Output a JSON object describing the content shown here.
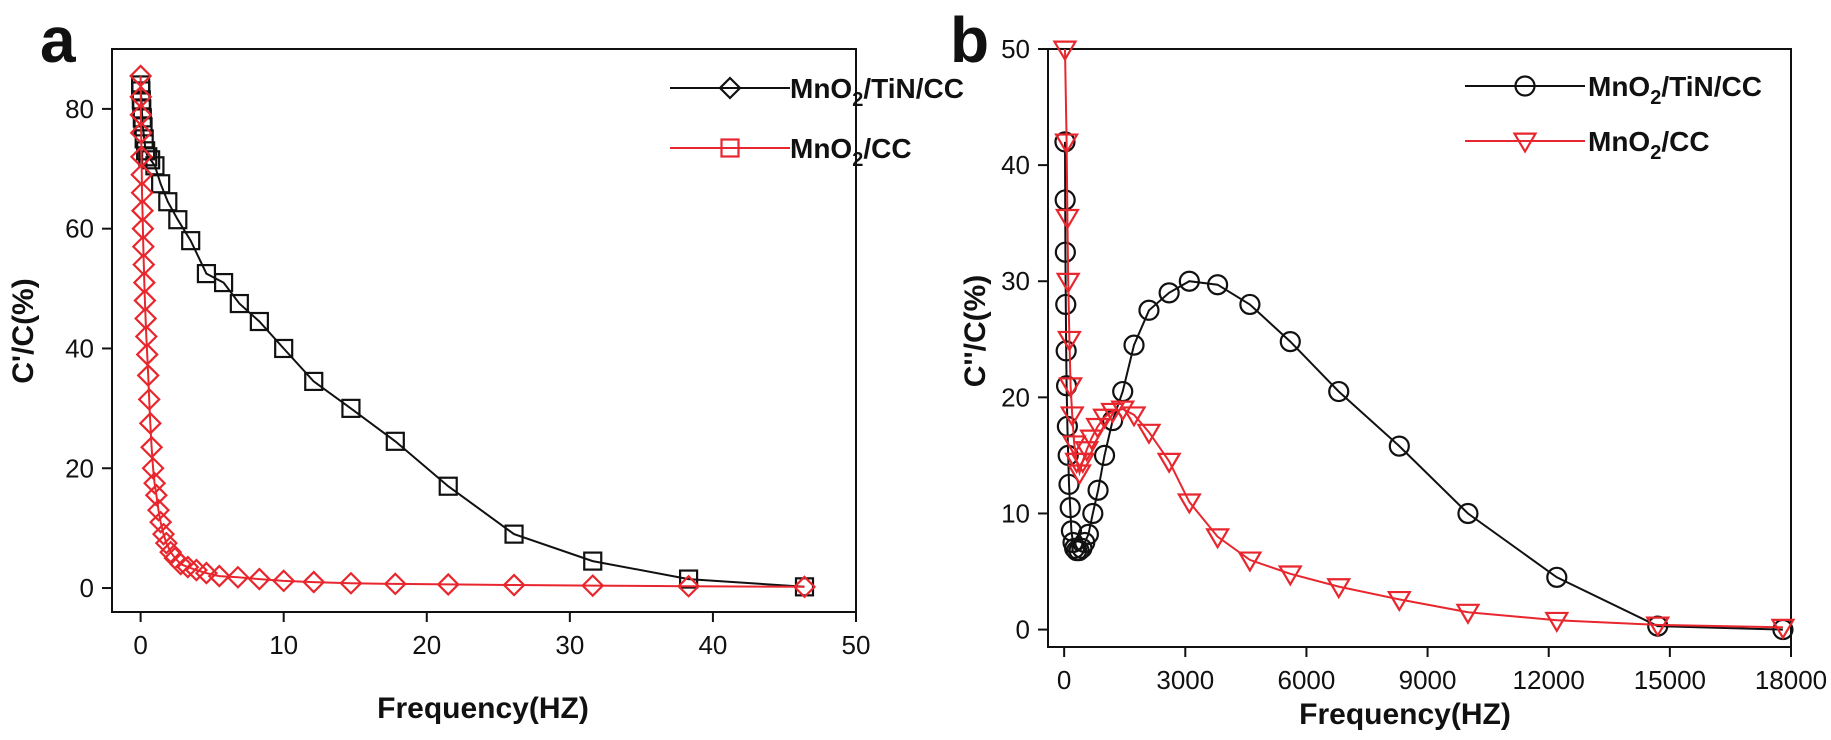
{
  "panels": [
    {
      "letter": "a",
      "xlabel": "Frequency(HZ)",
      "ylabel": "C'/C(%)"
    },
    {
      "letter": "b",
      "xlabel": "Frequency(HZ)",
      "ylabel": "C''/C(%)"
    }
  ],
  "colors": {
    "black": "#111111",
    "red": "#e8262d"
  },
  "chart_data": [
    {
      "type": "line",
      "xlabel": "Frequency(HZ)",
      "ylabel": "C'/C(%)",
      "xlim": [
        -2,
        50
      ],
      "ylim": [
        -4,
        90
      ],
      "xticks": [
        0,
        10,
        20,
        30,
        40,
        50
      ],
      "yticks": [
        0,
        20,
        40,
        60,
        80
      ],
      "legend_position": "top-right",
      "series": [
        {
          "name": "MnO2/TiN/CC",
          "name_parts": [
            "MnO",
            "2",
            "/TiN/CC"
          ],
          "color": "#111111",
          "legend_marker": "diamond",
          "marker": "square",
          "x": [
            0,
            0.02,
            0.05,
            0.08,
            0.12,
            0.17,
            0.25,
            0.35,
            0.5,
            0.7,
            1.0,
            1.4,
            1.9,
            2.6,
            3.5,
            4.6,
            5.8,
            6.9,
            8.3,
            10.0,
            12.1,
            14.7,
            17.8,
            21.5,
            26.1,
            31.6,
            38.3,
            46.4
          ],
          "y": [
            84,
            83,
            81.5,
            80,
            78.5,
            77,
            75,
            73,
            72,
            71.5,
            70.5,
            67.5,
            64.5,
            61.5,
            58,
            52.5,
            51,
            47.5,
            44.5,
            40,
            34.5,
            30,
            24.5,
            17,
            9,
            4.5,
            1.5,
            0.2
          ]
        },
        {
          "name": "MnO2/CC",
          "name_parts": [
            "MnO",
            "2",
            "/CC"
          ],
          "color": "#e8262d",
          "legend_marker": "square",
          "marker": "diamond",
          "x": [
            0,
            0.01,
            0.02,
            0.04,
            0.06,
            0.08,
            0.1,
            0.13,
            0.16,
            0.19,
            0.22,
            0.26,
            0.3,
            0.35,
            0.4,
            0.46,
            0.53,
            0.6,
            0.68,
            0.77,
            0.87,
            0.98,
            1.1,
            1.25,
            1.4,
            1.6,
            1.8,
            2.1,
            2.4,
            2.8,
            3.3,
            3.9,
            4.6,
            5.5,
            6.8,
            8.3,
            10.0,
            12.1,
            14.7,
            17.8,
            21.5,
            26.1,
            31.6,
            38.3,
            46.4
          ],
          "y": [
            85.5,
            82,
            79,
            76,
            72,
            69,
            66,
            63,
            60,
            57,
            54,
            51,
            48,
            45,
            42,
            39,
            35.5,
            31.5,
            27.5,
            23.5,
            20,
            17.5,
            15.5,
            13,
            11,
            9,
            7.5,
            6,
            5,
            4,
            3.5,
            3,
            2.5,
            2,
            1.8,
            1.5,
            1.2,
            1,
            0.8,
            0.7,
            0.6,
            0.5,
            0.4,
            0.3,
            0.2
          ]
        }
      ]
    },
    {
      "type": "line",
      "xlabel": "Frequency(HZ)",
      "ylabel": "C''/C(%)",
      "xlim": [
        -400,
        18000
      ],
      "ylim": [
        -1.5,
        50
      ],
      "xticks": [
        0,
        3000,
        6000,
        9000,
        12000,
        15000,
        18000
      ],
      "yticks": [
        0,
        10,
        20,
        30,
        40,
        50
      ],
      "legend_position": "top-right",
      "series": [
        {
          "name": "MnO2/TiN/CC",
          "name_parts": [
            "MnO",
            "2",
            "/TiN/CC"
          ],
          "color": "#111111",
          "marker": "circle",
          "x": [
            20,
            25,
            30,
            40,
            50,
            60,
            80,
            100,
            120,
            150,
            180,
            220,
            260,
            310,
            370,
            440,
            510,
            600,
            710,
            840,
            1000,
            1200,
            1450,
            1730,
            2100,
            2600,
            3100,
            3800,
            4600,
            5600,
            6800,
            8300,
            10000,
            12200,
            14700,
            17800
          ],
          "y": [
            42,
            37,
            32.5,
            28,
            24,
            21,
            17.5,
            15,
            12.5,
            10.5,
            8.5,
            7.5,
            7,
            6.8,
            6.8,
            7,
            7.5,
            8.2,
            10,
            12,
            15,
            18,
            20.5,
            24.5,
            27.5,
            29,
            30,
            29.7,
            28,
            24.8,
            20.5,
            15.8,
            10,
            4.5,
            0.3,
            0
          ]
        },
        {
          "name": "MnO2/CC",
          "name_parts": [
            "MnO",
            "2",
            "/CC"
          ],
          "color": "#e8262d",
          "marker": "triangle-down",
          "x": [
            20,
            60,
            80,
            100,
            130,
            160,
            200,
            250,
            310,
            380,
            460,
            560,
            680,
            830,
            1000,
            1200,
            1450,
            1730,
            2100,
            2600,
            3100,
            3800,
            4600,
            5600,
            6800,
            8300,
            10000,
            12200,
            14700,
            17800
          ],
          "y": [
            50,
            42,
            35.5,
            30,
            25,
            21,
            18.5,
            16,
            14.5,
            13.5,
            14.5,
            15.5,
            16.5,
            17.5,
            18.3,
            18.8,
            19,
            18.5,
            17,
            14.5,
            11,
            8,
            6,
            4.8,
            3.7,
            2.6,
            1.5,
            0.8,
            0.4,
            0.2
          ]
        }
      ]
    }
  ]
}
